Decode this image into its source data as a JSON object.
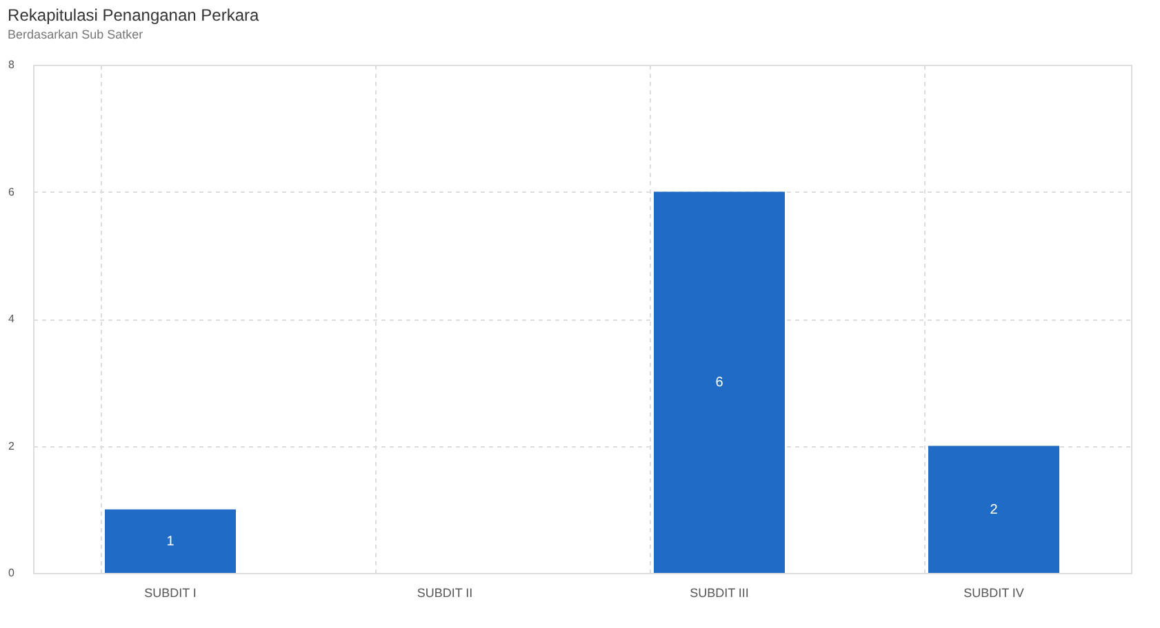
{
  "chart_data": {
    "type": "bar",
    "title": "Rekapitulasi Penanganan Perkara",
    "subtitle": "Berdasarkan Sub Satker",
    "categories": [
      "SUBDIT I",
      "SUBDIT II",
      "SUBDIT III",
      "SUBDIT IV"
    ],
    "values": [
      1,
      0,
      6,
      2
    ],
    "value_labels": [
      "1",
      null,
      "6",
      "2"
    ],
    "color": "#1f6bc6",
    "ylim": [
      0,
      8
    ],
    "yticks": [
      0,
      2,
      4,
      6,
      8
    ],
    "grid": true
  }
}
